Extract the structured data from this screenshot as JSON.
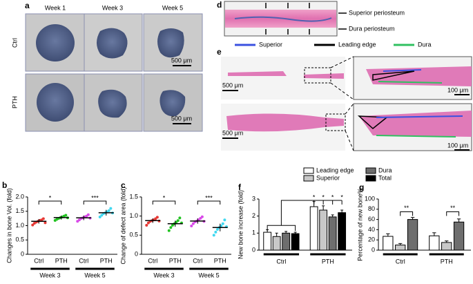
{
  "panel_a": {
    "label": "a",
    "columns": [
      "Week 1",
      "Week 3",
      "Week 5"
    ],
    "rows": [
      "Ctrl",
      "PTH"
    ],
    "scale_bar": "500 μm"
  },
  "panel_d": {
    "label": "d",
    "annotations": [
      "Superior periosteum",
      "Dura periosteum"
    ],
    "legend": [
      "Superior",
      "Leading edge",
      "Dura"
    ]
  },
  "panel_e": {
    "label": "e",
    "scale_bars": [
      "500 μm",
      "100 μm"
    ]
  },
  "chart_data": [
    {
      "type": "dot",
      "label": "b",
      "ylabel": "Changes in bone Vol. (fold)",
      "categories": [
        "Ctrl",
        "PTH",
        "Ctrl",
        "PTH"
      ],
      "groups": [
        "Week 3",
        "Week 5"
      ],
      "colors": [
        "#e53935",
        "#22c322",
        "#d84ae8",
        "#40d8f0"
      ],
      "values": [
        1.15,
        1.28,
        1.27,
        1.45
      ],
      "errors": [
        0.08,
        0.07,
        0.08,
        0.1
      ],
      "points": [
        [
          1.02,
          1.08,
          1.12,
          1.15,
          1.18,
          1.2,
          1.24,
          1.1
        ],
        [
          1.18,
          1.22,
          1.25,
          1.28,
          1.3,
          1.33,
          1.36,
          1.27
        ],
        [
          1.15,
          1.2,
          1.25,
          1.27,
          1.3,
          1.33,
          1.38,
          1.26
        ],
        [
          1.3,
          1.36,
          1.42,
          1.45,
          1.48,
          1.52,
          1.6,
          1.44
        ]
      ],
      "annotations": [
        "*",
        "***"
      ],
      "ylim": [
        0,
        2
      ],
      "yticks": [
        0,
        0.5,
        {
          "value": 1,
          "label": "1.0"
        },
        1.5,
        {
          "value": 2,
          "label": "2.0"
        }
      ]
    },
    {
      "type": "dot",
      "label": "c",
      "ylabel": "Change of defect area (fold)",
      "categories": [
        "Ctrl",
        "PTH",
        "Ctrl",
        "PTH"
      ],
      "groups": [
        "Week 3",
        "Week 5"
      ],
      "colors": [
        "#e53935",
        "#22c322",
        "#d84ae8",
        "#40d8f0"
      ],
      "values": [
        0.88,
        0.8,
        0.87,
        0.7
      ],
      "errors": [
        0.06,
        0.08,
        0.07,
        0.1
      ],
      "points": [
        [
          0.76,
          0.82,
          0.86,
          0.88,
          0.9,
          0.93,
          0.97,
          0.87
        ],
        [
          0.62,
          0.7,
          0.76,
          0.8,
          0.84,
          0.88,
          0.95,
          0.82
        ],
        [
          0.74,
          0.8,
          0.85,
          0.87,
          0.9,
          0.94,
          0.98,
          0.86
        ],
        [
          0.5,
          0.58,
          0.65,
          0.7,
          0.74,
          0.8,
          0.9,
          0.72
        ]
      ],
      "annotations": [
        "*",
        "***"
      ],
      "ylim": [
        0,
        1.5
      ],
      "yticks": [
        0,
        0.5,
        {
          "value": 1,
          "label": "1.0"
        },
        1.5
      ]
    },
    {
      "type": "bar",
      "label": "f",
      "ylabel": "New bone increase (fold)",
      "categories": [
        "Ctrl",
        "PTH"
      ],
      "series": [
        {
          "name": "Leading edge",
          "color": "#ffffff",
          "values": [
            1.05,
            2.55
          ],
          "errors": [
            0.15,
            0.3
          ]
        },
        {
          "name": "Superior",
          "color": "#c8c8c8",
          "values": [
            0.8,
            2.35
          ],
          "errors": [
            0.2,
            0.25
          ]
        },
        {
          "name": "Dura",
          "color": "#6e6e6e",
          "values": [
            1.0,
            1.95
          ],
          "errors": [
            0.1,
            0.12
          ]
        },
        {
          "name": "Total",
          "color": "#000000",
          "values": [
            0.97,
            2.2
          ],
          "errors": [
            0.08,
            0.15
          ]
        }
      ],
      "annotations": [
        "*",
        "*",
        "*",
        "*"
      ],
      "ylim": [
        0,
        3
      ],
      "yticks": [
        0,
        1,
        2,
        3
      ]
    },
    {
      "type": "bar",
      "label": "g",
      "ylabel": "Percentage of new bone%",
      "categories": [
        "Ctrl",
        "PTH"
      ],
      "series": [
        {
          "name": "Leading edge",
          "color": "#ffffff",
          "values": [
            27,
            28
          ],
          "errors": [
            5,
            6
          ]
        },
        {
          "name": "Superior",
          "color": "#c8c8c8",
          "values": [
            10,
            15
          ],
          "errors": [
            3,
            3
          ]
        },
        {
          "name": "Dura",
          "color": "#6e6e6e",
          "values": [
            60,
            55
          ],
          "errors": [
            4,
            6
          ]
        }
      ],
      "annotations": [
        "**",
        "**"
      ],
      "ylim": [
        0,
        100
      ],
      "yticks": [
        0,
        20,
        40,
        60,
        80,
        100
      ]
    }
  ]
}
